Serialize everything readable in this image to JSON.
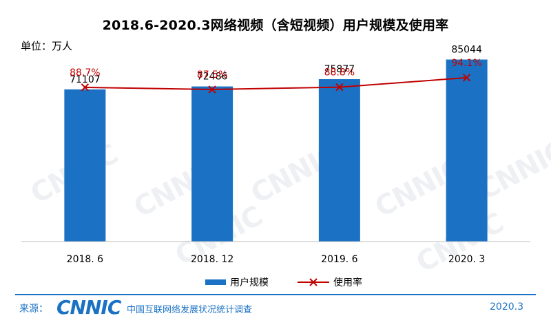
{
  "header": {
    "title": "2018.6-2020.3网络视频（含短视频）用户规模及使用率",
    "unit": "单位：万人"
  },
  "watermark": {
    "text": "CNNIC"
  },
  "chart_data": {
    "type": "bar",
    "title": "2018.6-2020.3网络视频（含短视频）用户规模及使用率",
    "categories": [
      "2018. 6",
      "2018. 12",
      "2019. 6",
      "2020. 3"
    ],
    "series": [
      {
        "name": "用户规模",
        "type": "bar",
        "values": [
          71107,
          72486,
          75877,
          85044
        ],
        "labels": [
          "71107",
          "72486",
          "75877",
          "85044"
        ]
      },
      {
        "name": "使用率",
        "type": "line",
        "values": [
          88.7,
          87.5,
          88.8,
          94.1
        ],
        "labels": [
          "88.7%",
          "87.5%",
          "88.8%",
          "94.1%"
        ]
      }
    ],
    "ylim_bar": [
      0,
      100000
    ],
    "ylim_line": [
      0,
      100
    ],
    "legend": "bottom",
    "colors": {
      "bar": "#1b72c4",
      "line": "#c00000"
    }
  },
  "footer": {
    "source_label": "来源：",
    "logo": "CNNIC",
    "org": "中国互联网络发展状况统计调查",
    "date": "2020.3"
  }
}
